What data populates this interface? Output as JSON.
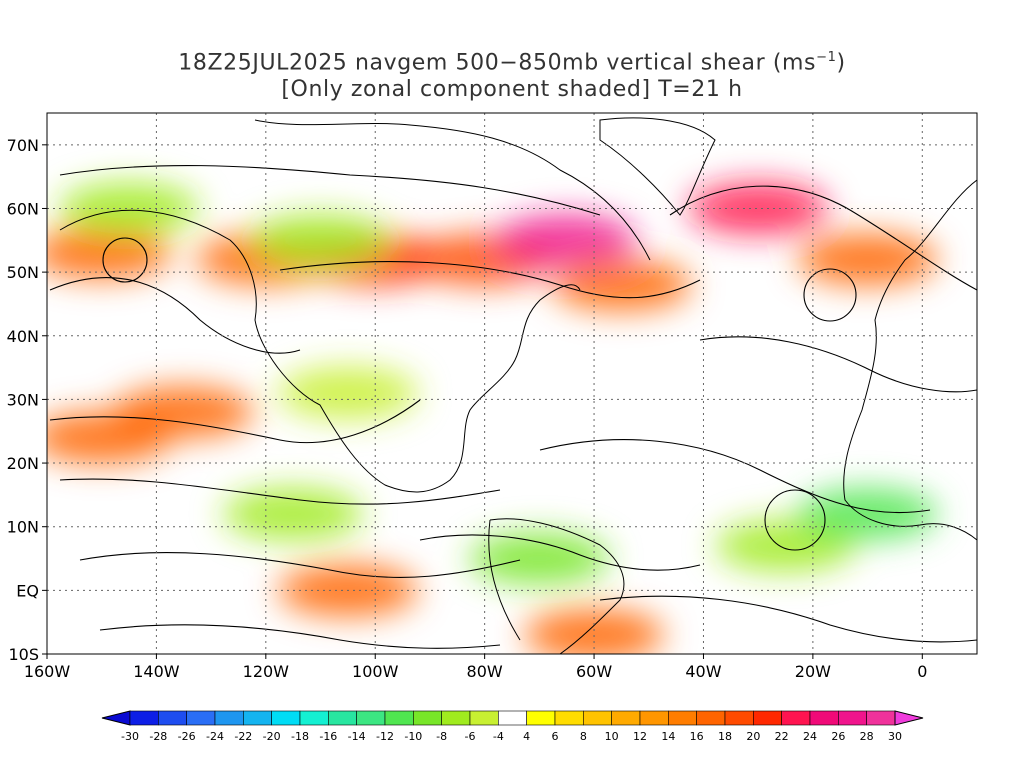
{
  "title": {
    "line1_prefix": "18Z25JUL2025 navgem 500−850mb vertical shear (ms",
    "line1_sup": "−1",
    "line1_suffix": ")",
    "line2": "[Only zonal component shaded] T=21 h"
  },
  "map": {
    "lat_labels": [
      "70N",
      "60N",
      "50N",
      "40N",
      "30N",
      "20N",
      "10N",
      "EQ",
      "10S"
    ],
    "lat_values": [
      70,
      60,
      50,
      40,
      30,
      20,
      10,
      0,
      -10
    ],
    "lon_labels": [
      "160W",
      "140W",
      "120W",
      "100W",
      "80W",
      "60W",
      "40W",
      "20W",
      "0"
    ],
    "lon_values": [
      -160,
      -140,
      -120,
      -100,
      -80,
      -60,
      -40,
      -20,
      0
    ],
    "lon_range": [
      -160,
      10
    ],
    "lat_range": [
      -10,
      75
    ]
  },
  "colorbar": {
    "labels": [
      "-30",
      "-28",
      "-26",
      "-24",
      "-22",
      "-20",
      "-18",
      "-16",
      "-14",
      "-12",
      "-10",
      "-8",
      "-6",
      "-4",
      "4",
      "6",
      "8",
      "10",
      "12",
      "14",
      "16",
      "18",
      "20",
      "22",
      "24",
      "26",
      "28",
      "30"
    ],
    "colors": [
      "#0d1ee6",
      "#1e4df0",
      "#2a6ef5",
      "#1e96f0",
      "#14b4f0",
      "#00dcf5",
      "#14f0d2",
      "#28e6a0",
      "#3ce682",
      "#50e650",
      "#78e628",
      "#a0eb1e",
      "#c8f032",
      "#ffffff",
      "#ffff00",
      "#ffdc00",
      "#ffc300",
      "#ffaa00",
      "#ff9600",
      "#ff7d00",
      "#ff6400",
      "#ff4b00",
      "#ff2800",
      "#ff1450",
      "#f00a78",
      "#f0148c",
      "#f0329b"
    ]
  },
  "shading": [
    {
      "lon": -150,
      "lat": 53,
      "level": 14
    },
    {
      "lon": -120,
      "lat": 52,
      "level": 14
    },
    {
      "lon": -100,
      "lat": 52,
      "level": 18
    },
    {
      "lon": -80,
      "lat": 52,
      "level": 16
    },
    {
      "lon": -65,
      "lat": 55,
      "level": 24
    },
    {
      "lon": -55,
      "lat": 48,
      "level": 14
    },
    {
      "lon": -30,
      "lat": 60,
      "level": 20
    },
    {
      "lon": -10,
      "lat": 52,
      "level": 14
    },
    {
      "lon": -150,
      "lat": 24,
      "level": 14
    },
    {
      "lon": -135,
      "lat": 28,
      "level": 14
    },
    {
      "lon": -105,
      "lat": 0,
      "level": 14
    },
    {
      "lon": -60,
      "lat": -7,
      "level": 14
    },
    {
      "lon": -110,
      "lat": 55,
      "level": -10
    },
    {
      "lon": -145,
      "lat": 60,
      "level": -10
    },
    {
      "lon": -70,
      "lat": 5,
      "level": -12
    },
    {
      "lon": -25,
      "lat": 7,
      "level": -10
    },
    {
      "lon": -10,
      "lat": 12,
      "level": -14
    },
    {
      "lon": -105,
      "lat": 31,
      "level": -8
    },
    {
      "lon": -115,
      "lat": 12,
      "level": -10
    }
  ]
}
